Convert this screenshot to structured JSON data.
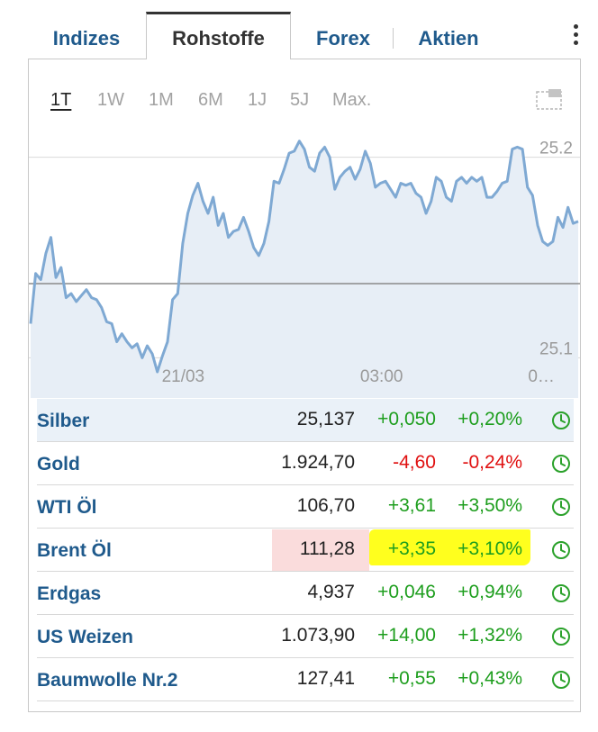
{
  "tabs": [
    {
      "label": "Indizes",
      "active": false
    },
    {
      "label": "Rohstoffe",
      "active": true
    },
    {
      "label": "Forex",
      "active": false
    },
    {
      "label": "Aktien",
      "active": false
    }
  ],
  "ranges": [
    "1T",
    "1W",
    "1M",
    "6M",
    "1J",
    "5J",
    "Max."
  ],
  "active_range": "1T",
  "chart_data": {
    "type": "area",
    "series": [
      {
        "values": [
          25.117,
          25.142,
          25.139,
          25.152,
          25.16,
          25.14,
          25.145,
          25.13,
          25.132,
          25.128,
          25.131,
          25.134,
          25.13,
          25.129,
          25.125,
          25.118,
          25.117,
          25.108,
          25.112,
          25.108,
          25.105,
          25.107,
          25.1,
          25.106,
          25.102,
          25.093,
          25.101,
          25.108,
          25.129,
          25.132,
          25.157,
          25.172,
          25.181,
          25.187,
          25.178,
          25.172,
          25.18,
          25.166,
          25.172,
          25.16,
          25.163,
          25.164,
          25.17,
          25.163,
          25.155,
          25.151,
          25.157,
          25.168,
          25.188,
          25.187,
          25.194,
          25.202,
          25.203,
          25.208,
          25.204,
          25.195,
          25.193,
          25.202,
          25.205,
          25.2,
          25.184,
          25.19,
          25.193,
          25.195,
          25.189,
          25.194,
          25.203,
          25.197,
          25.185,
          25.187,
          25.188,
          25.184,
          25.18,
          25.187,
          25.186,
          25.187,
          25.182,
          25.18,
          25.172,
          25.178,
          25.19,
          25.188,
          25.18,
          25.178,
          25.188,
          25.19,
          25.187,
          25.19,
          25.188,
          25.19,
          25.18,
          25.18,
          25.183,
          25.187,
          25.188,
          25.204,
          25.205,
          25.204,
          25.185,
          25.181,
          25.166,
          25.158,
          25.156,
          25.158,
          25.17,
          25.165,
          25.175,
          25.167,
          25.168
        ],
        "color": "#7fa9d3"
      }
    ],
    "reference_value": 25.137,
    "y_ticks": [
      "25.2",
      "25.1"
    ],
    "y_tick_values": [
      25.2,
      25.1
    ],
    "ylim": [
      25.08,
      25.22
    ],
    "x_ticks": [
      "21/03",
      "03:00",
      "0…"
    ],
    "x_tick_positions": [
      0.28,
      0.64,
      0.93
    ],
    "title": "",
    "xlabel": "",
    "ylabel": ""
  },
  "rows": [
    {
      "name": "Silber",
      "price": "25,137",
      "change": "+0,050",
      "percent": "+0,20%",
      "direction": "up"
    },
    {
      "name": "Gold",
      "price": "1.924,70",
      "change": "-4,60",
      "percent": "-0,24%",
      "direction": "down"
    },
    {
      "name": "WTI Öl",
      "price": "106,70",
      "change": "+3,61",
      "percent": "+3,50%",
      "direction": "up"
    },
    {
      "name": "Brent Öl",
      "price": "111,28",
      "change": "+3,35",
      "percent": "+3,10%",
      "direction": "up"
    },
    {
      "name": "Erdgas",
      "price": "4,937",
      "change": "+0,046",
      "percent": "+0,94%",
      "direction": "up"
    },
    {
      "name": "US Weizen",
      "price": "1.073,90",
      "change": "+14,00",
      "percent": "+1,32%",
      "direction": "up"
    },
    {
      "name": "Baumwolle Nr.2",
      "price": "127,41",
      "change": "+0,55",
      "percent": "+0,43%",
      "direction": "up"
    }
  ],
  "colors": {
    "up": "#1e9e1e",
    "down": "#e01010",
    "link": "#1f5a8c",
    "line": "#7fa9d3",
    "fill": "#e7eef6",
    "price_highlight": "#fadcdc",
    "change_highlight": "#ffff1e"
  },
  "icons": {
    "clock": "clock-icon",
    "more": "more-vertical-icon",
    "expand": "expand-icon"
  }
}
